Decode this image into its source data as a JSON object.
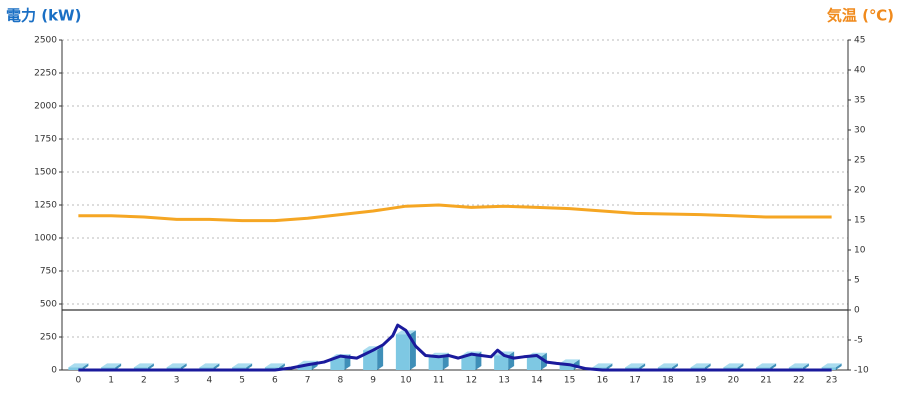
{
  "chart_data": {
    "type": "combo",
    "y_label": "電力 (kW)",
    "y2_label": "気温 (℃)",
    "categories": [
      "0",
      "1",
      "2",
      "3",
      "4",
      "5",
      "6",
      "7",
      "8",
      "9",
      "10",
      "11",
      "12",
      "13",
      "14",
      "15",
      "16",
      "17",
      "18",
      "19",
      "20",
      "21",
      "22",
      "23"
    ],
    "ylim": [
      0,
      2500
    ],
    "yticks": [
      0,
      250,
      500,
      750,
      1000,
      1250,
      1500,
      1750,
      2000,
      2250,
      2500
    ],
    "y2lim": [
      -10,
      45
    ],
    "y2ticks": [
      -10,
      -5,
      0,
      5,
      10,
      15,
      20,
      25,
      30,
      35,
      40,
      45
    ],
    "grid": true,
    "series": [
      {
        "type": "bar",
        "color": "#7ec8e3",
        "values": [
          20,
          20,
          20,
          20,
          20,
          20,
          20,
          40,
          90,
          150,
          270,
          100,
          110,
          110,
          100,
          50,
          20,
          20,
          20,
          20,
          20,
          20,
          20,
          20
        ]
      },
      {
        "type": "line",
        "axis": "y2",
        "color": "#f5a623",
        "values": [
          15.7,
          15.7,
          15.5,
          15.1,
          15.1,
          14.9,
          14.9,
          15.3,
          15.9,
          16.5,
          17.3,
          17.5,
          17.1,
          17.3,
          17.1,
          16.9,
          16.5,
          16.1,
          16.0,
          15.9,
          15.7,
          15.5,
          15.5,
          15.5
        ]
      },
      {
        "type": "line",
        "color": "#1a1a9c",
        "x": [
          0,
          1,
          2,
          3,
          4,
          5,
          6,
          6.5,
          7,
          7.5,
          8,
          8.5,
          9,
          9.3,
          9.6,
          9.75,
          10,
          10.3,
          10.6,
          11,
          11.3,
          11.6,
          12,
          12.3,
          12.6,
          12.8,
          13,
          13.3,
          13.6,
          14,
          14.3,
          14.6,
          15,
          15.5,
          16,
          17,
          18,
          19,
          20,
          21,
          22,
          23
        ],
        "values": [
          0,
          0,
          0,
          0,
          0,
          0,
          0,
          15,
          40,
          60,
          105,
          90,
          150,
          190,
          260,
          340,
          300,
          180,
          110,
          100,
          110,
          90,
          120,
          110,
          100,
          150,
          110,
          90,
          100,
          110,
          60,
          50,
          40,
          10,
          0,
          0,
          0,
          0,
          0,
          0,
          0,
          0
        ]
      }
    ]
  }
}
